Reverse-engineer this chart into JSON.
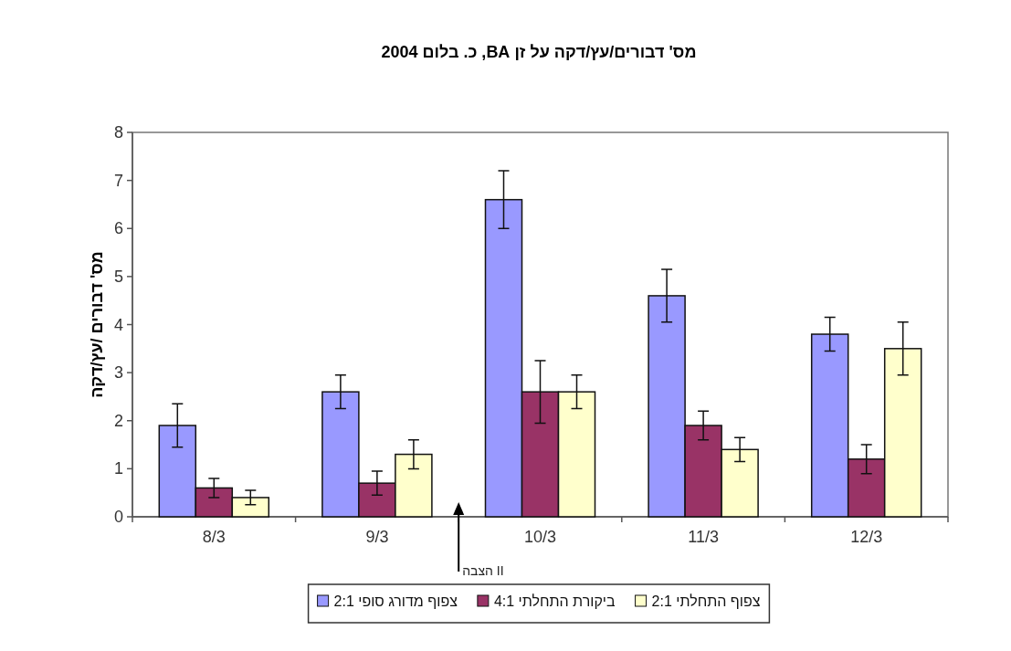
{
  "chart_data": {
    "type": "bar",
    "title": "מס' דבורים/עץ/דקה על זן BA, כ. בלום 2004",
    "ylabel": "מס' דבורים /עץ/דקה",
    "categories": [
      "8/3",
      "9/3",
      "10/3",
      "11/3",
      "12/3"
    ],
    "series": [
      {
        "name": "צפוף מדורג  סופי 2:1",
        "color": "#9999ff",
        "values": [
          1.9,
          2.6,
          6.6,
          4.6,
          3.8
        ],
        "errors": [
          0.45,
          0.35,
          0.6,
          0.55,
          0.35
        ]
      },
      {
        "name": "ביקורת  התחלתי 4:1",
        "color": "#993366",
        "values": [
          0.6,
          0.7,
          2.6,
          1.9,
          1.2
        ],
        "errors": [
          0.2,
          0.25,
          0.65,
          0.3,
          0.3
        ]
      },
      {
        "name": "צפוף  התחלתי 2:1",
        "color": "#ffffcc",
        "values": [
          0.4,
          1.3,
          2.6,
          1.4,
          3.5
        ],
        "errors": [
          0.15,
          0.3,
          0.35,
          0.25,
          0.55
        ]
      }
    ],
    "annotations": [
      "הצבה II"
    ],
    "ylim": [
      0,
      8
    ],
    "yticks": [
      0,
      1,
      2,
      3,
      4,
      5,
      6,
      7,
      8
    ],
    "grid": false,
    "legend": "bottom"
  }
}
